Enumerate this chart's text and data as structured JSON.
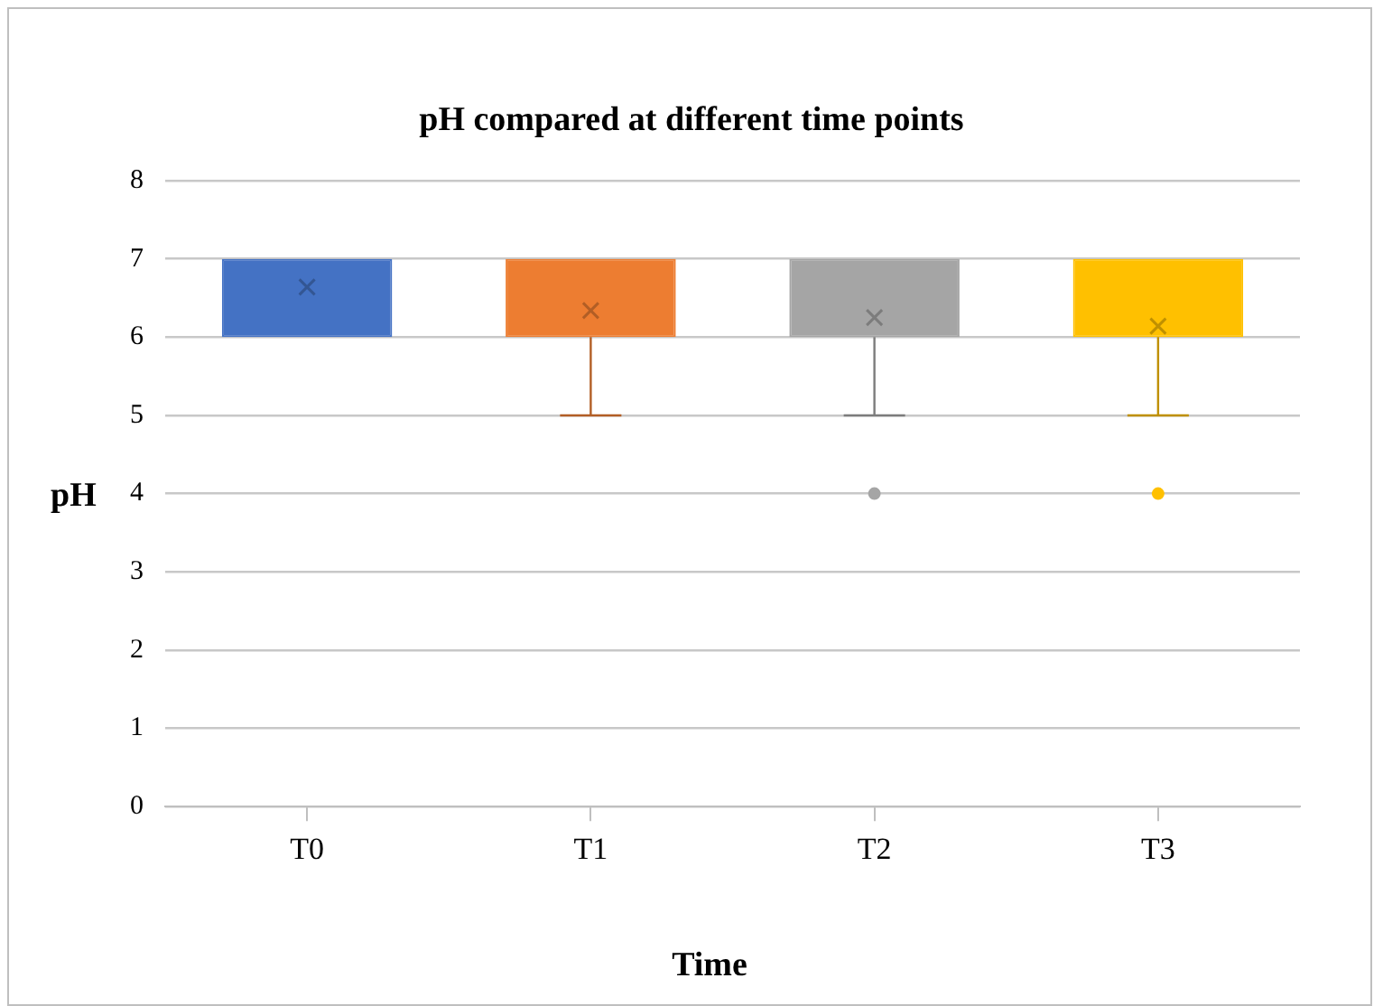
{
  "chart_data": {
    "type": "box",
    "title": "pH compared at different time points",
    "xlabel": "Time",
    "ylabel": "pH",
    "categories": [
      "T0",
      "T1",
      "T2",
      "T3"
    ],
    "colors": [
      "#4472c4",
      "#ed7d31",
      "#a5a5a5",
      "#ffc000"
    ],
    "boxes": [
      {
        "low": 6,
        "q1": 6,
        "median": 7,
        "q3": 7,
        "high": 7,
        "mean": 6.64
      },
      {
        "low": 5,
        "q1": 6,
        "median": 7,
        "q3": 7,
        "high": 7,
        "mean": 6.34
      },
      {
        "low": 5,
        "q1": 6,
        "median": 6,
        "q3": 7,
        "high": 7,
        "mean": 6.25,
        "outliers": [
          4
        ]
      },
      {
        "low": 5,
        "q1": 6,
        "median": 6,
        "q3": 7,
        "high": 7,
        "mean": 6.14,
        "outliers": [
          4
        ]
      }
    ],
    "ylim": [
      0,
      8
    ],
    "yticks": [
      0,
      1,
      2,
      3,
      4,
      5,
      6,
      7,
      8
    ],
    "grid": "y"
  }
}
